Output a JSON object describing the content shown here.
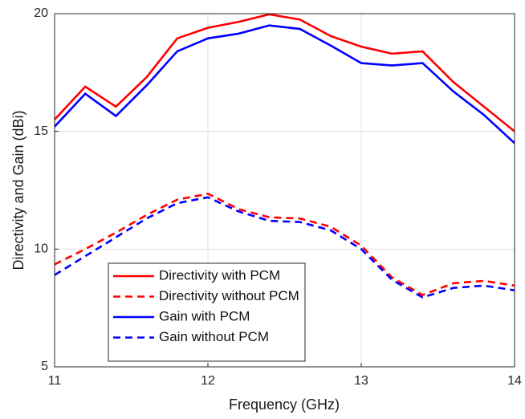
{
  "chart_data": {
    "type": "line",
    "xlabel": "Frequency (GHz)",
    "ylabel": "Directivity and Gain (dBi)",
    "x": [
      11,
      11.2,
      11.4,
      11.6,
      11.8,
      12,
      12.2,
      12.4,
      12.6,
      12.8,
      13,
      13.2,
      13.4,
      13.6,
      13.8,
      14
    ],
    "series": [
      {
        "name": "Directivity with PCM",
        "color": "#ff0000",
        "dash": "solid",
        "values": [
          15.5,
          16.9,
          16.05,
          17.3,
          18.95,
          19.4,
          19.65,
          19.97,
          19.75,
          19.05,
          18.6,
          18.3,
          18.4,
          17.1,
          16.05,
          15.0
        ]
      },
      {
        "name": "Directivity without PCM",
        "color": "#ff0000",
        "dash": "dashed",
        "values": [
          9.35,
          10.0,
          10.7,
          11.45,
          12.1,
          12.35,
          11.7,
          11.35,
          11.3,
          10.95,
          10.15,
          8.8,
          8.05,
          8.55,
          8.65,
          8.45
        ]
      },
      {
        "name": "Gain with PCM",
        "color": "#0000ff",
        "dash": "solid",
        "values": [
          15.2,
          16.6,
          15.65,
          16.95,
          18.4,
          18.95,
          19.15,
          19.5,
          19.35,
          18.65,
          17.9,
          17.8,
          17.9,
          16.7,
          15.7,
          14.5
        ]
      },
      {
        "name": "Gain without PCM",
        "color": "#0000ff",
        "dash": "dashed",
        "values": [
          8.9,
          9.7,
          10.5,
          11.3,
          11.95,
          12.2,
          11.6,
          11.2,
          11.15,
          10.8,
          10.0,
          8.7,
          7.95,
          8.35,
          8.45,
          8.25
        ]
      }
    ],
    "xlim": [
      11,
      14
    ],
    "xticks": [
      11,
      12,
      13,
      14
    ],
    "ylim": [
      5,
      20
    ],
    "yticks": [
      5,
      10,
      15,
      20
    ],
    "grid": true,
    "legend_position": "lower left"
  }
}
